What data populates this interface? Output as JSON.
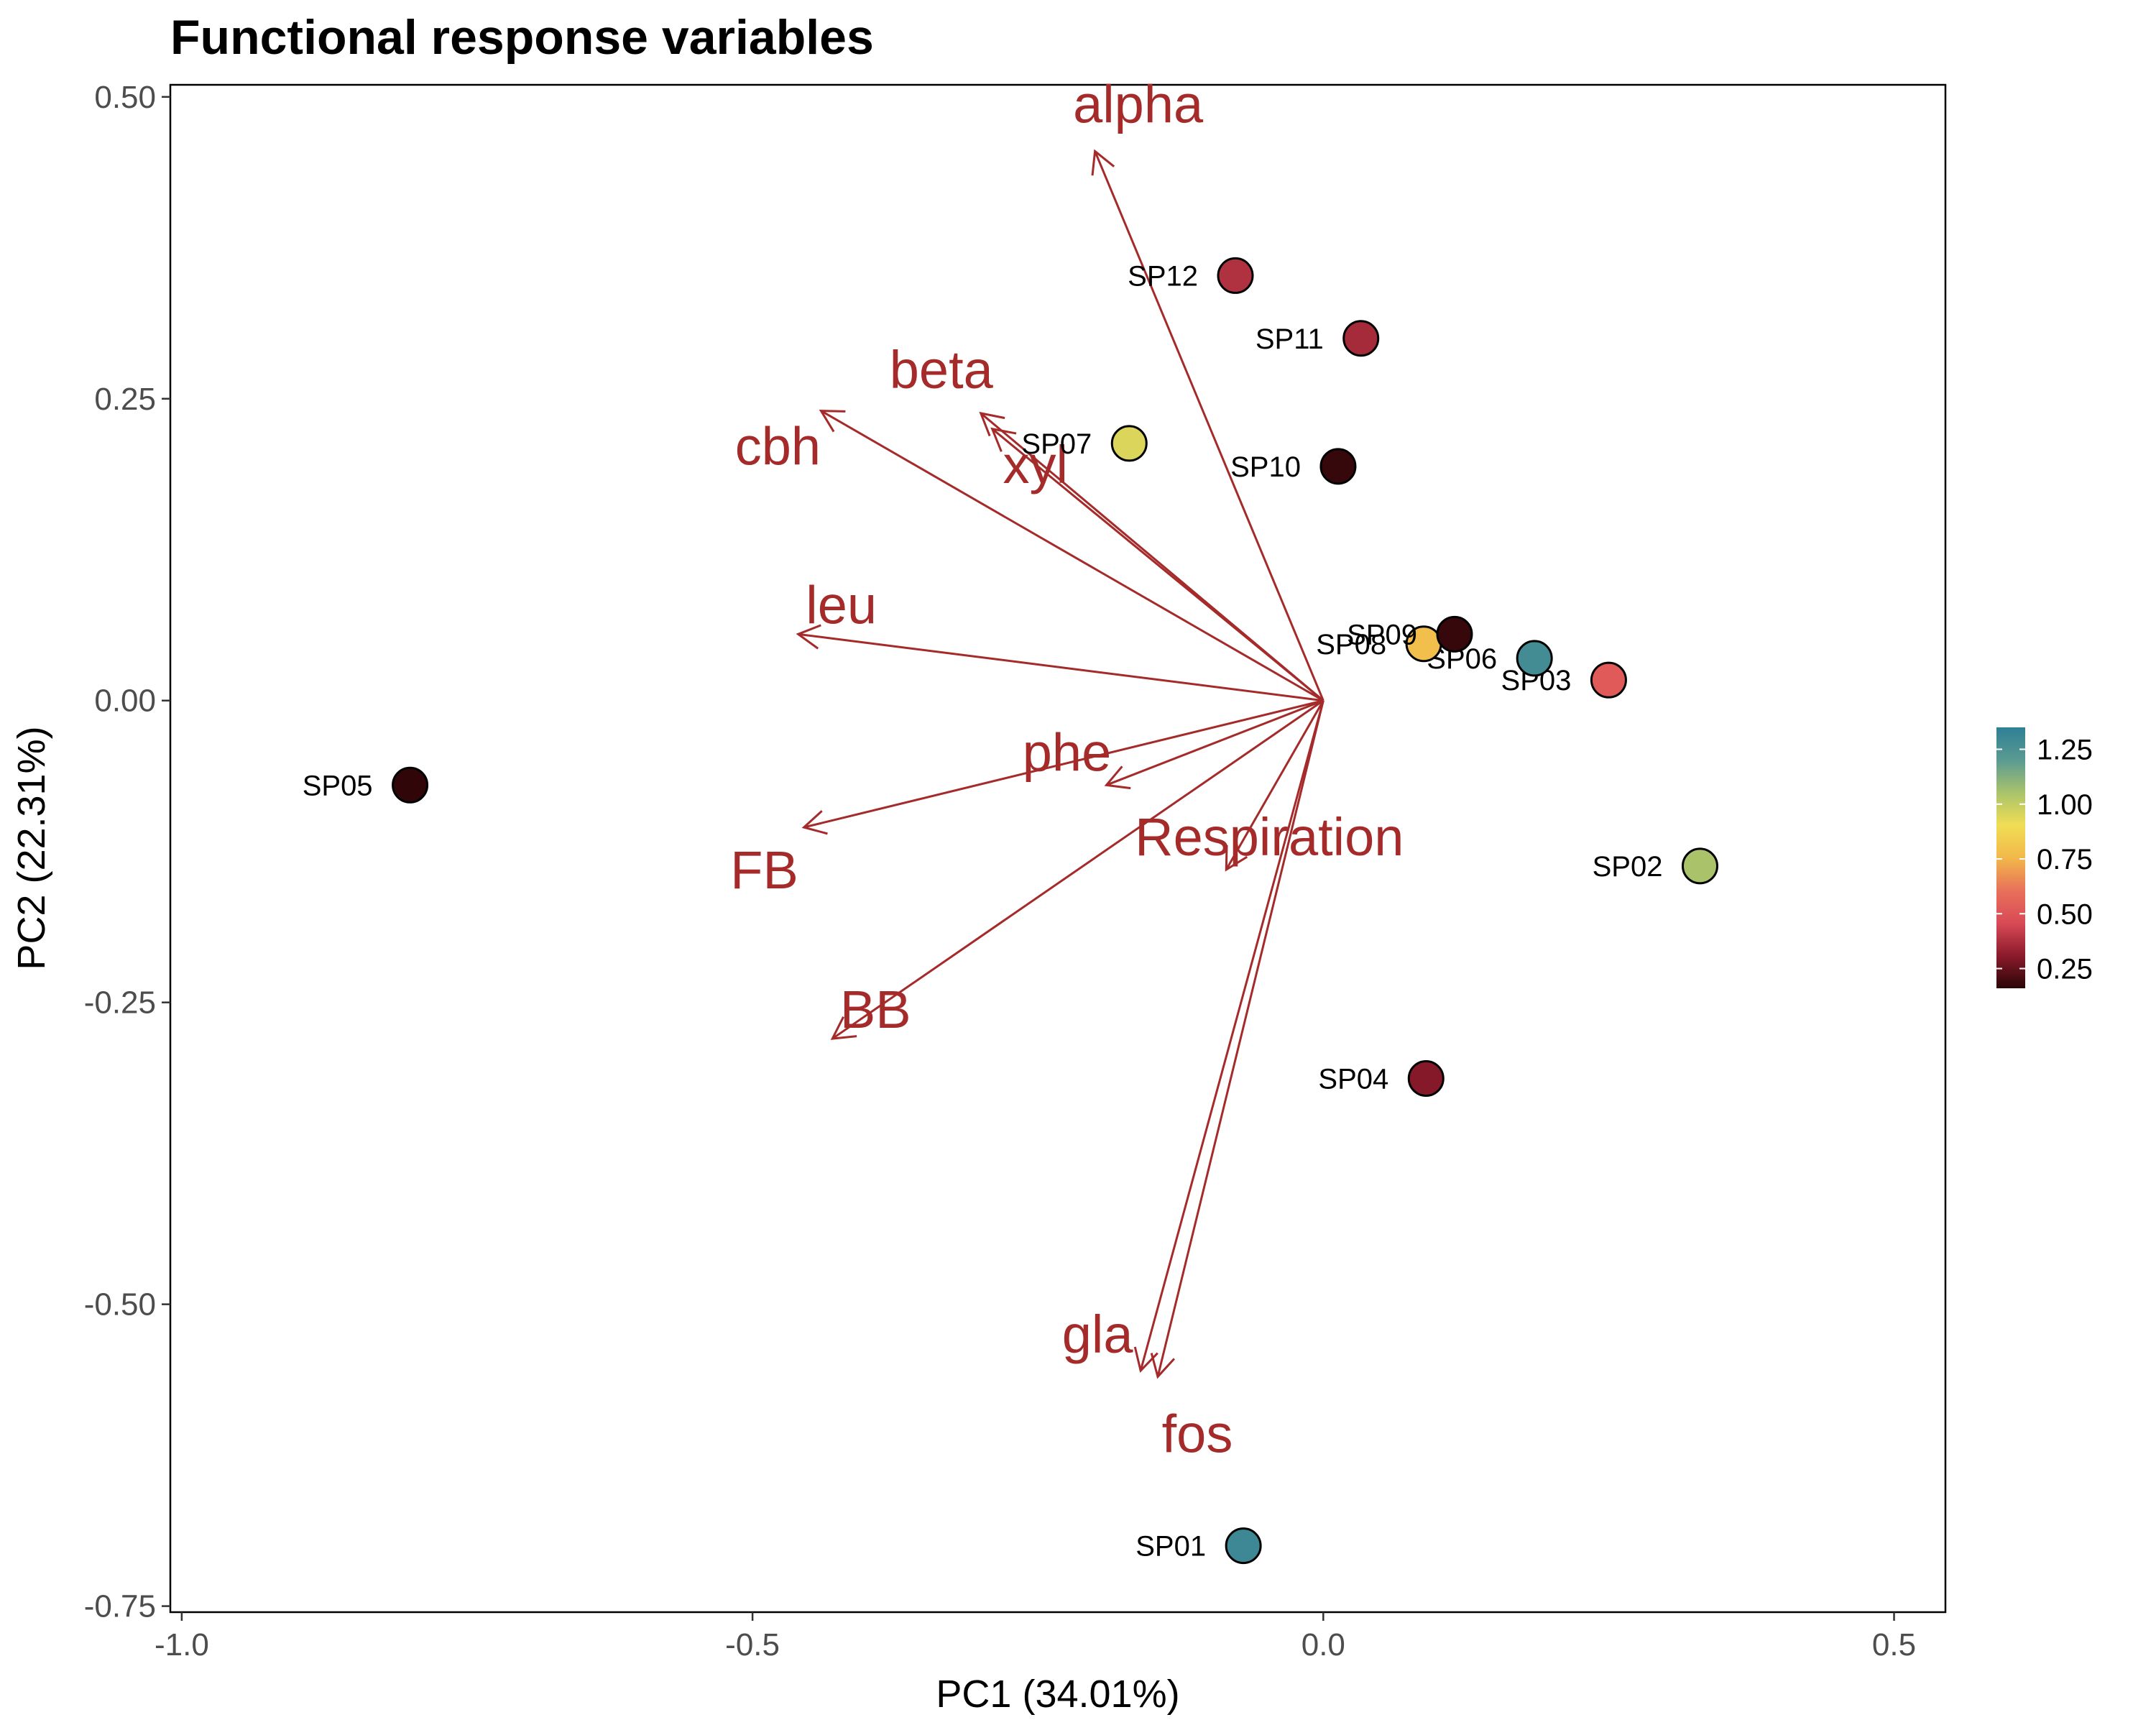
{
  "chart_data": {
    "type": "scatter",
    "title": "Functional response variables",
    "xlabel": "PC1 (34.01%)",
    "ylabel": "PC2 (22.31%)",
    "xlim": [
      -1.01,
      0.545
    ],
    "ylim": [
      -0.755,
      0.51
    ],
    "x_ticks": [
      -1.0,
      -0.5,
      0.0,
      0.5
    ],
    "x_tick_labels": [
      "-1.0",
      "-0.5",
      "0.0",
      "0.5"
    ],
    "y_ticks": [
      0.5,
      0.25,
      0.0,
      -0.25,
      -0.5,
      -0.75
    ],
    "y_tick_labels": [
      "0.50",
      "0.25",
      "0.00",
      "-0.25",
      "-0.50",
      "-0.75"
    ],
    "grid": false,
    "legend_position": "right",
    "colorbar": {
      "range": [
        0.16,
        1.35
      ],
      "ticks": [
        1.25,
        1.0,
        0.75,
        0.5,
        0.25
      ],
      "tick_labels": [
        "1.25",
        "1.00",
        "0.75",
        "0.50",
        "0.25"
      ],
      "colors": [
        "#2a0506",
        "#8b1a2c",
        "#d94a56",
        "#e8715a",
        "#f2b84a",
        "#f1dd55",
        "#a9c36b",
        "#5a9a92",
        "#2f7f95"
      ]
    },
    "arrow_color": "#a52a2a",
    "points": [
      {
        "label": "SP01",
        "x": -0.07,
        "y": -0.7,
        "value": 1.3
      },
      {
        "label": "SP02",
        "x": 0.33,
        "y": -0.137,
        "value": 1.05
      },
      {
        "label": "SP03",
        "x": 0.25,
        "y": 0.017,
        "value": 0.52
      },
      {
        "label": "SP04",
        "x": 0.09,
        "y": -0.313,
        "value": 0.3
      },
      {
        "label": "SP05",
        "x": -0.8,
        "y": -0.07,
        "value": 0.17
      },
      {
        "label": "SP06",
        "x": 0.185,
        "y": 0.035,
        "value": 1.28
      },
      {
        "label": "SP07",
        "x": -0.17,
        "y": 0.213,
        "value": 0.95
      },
      {
        "label": "SP08",
        "x": 0.088,
        "y": 0.047,
        "value": 0.78
      },
      {
        "label": "SP09",
        "x": 0.115,
        "y": 0.055,
        "value": 0.18
      },
      {
        "label": "SP10",
        "x": 0.013,
        "y": 0.194,
        "value": 0.18
      },
      {
        "label": "SP11",
        "x": 0.033,
        "y": 0.3,
        "value": 0.36
      },
      {
        "label": "SP12",
        "x": -0.077,
        "y": 0.352,
        "value": 0.38
      }
    ],
    "vectors": [
      {
        "label": "alpha",
        "x": -0.2,
        "y": 0.455
      },
      {
        "label": "beta",
        "x": -0.3,
        "y": 0.238
      },
      {
        "label": "xyl",
        "x": -0.29,
        "y": 0.225
      },
      {
        "label": "cbh",
        "x": -0.44,
        "y": 0.24
      },
      {
        "label": "leu",
        "x": -0.46,
        "y": 0.055
      },
      {
        "label": "phe",
        "x": -0.19,
        "y": -0.07
      },
      {
        "label": "FB",
        "x": -0.455,
        "y": -0.105
      },
      {
        "label": "Respiration",
        "x": -0.085,
        "y": -0.14
      },
      {
        "label": "BB",
        "x": -0.43,
        "y": -0.28
      },
      {
        "label": "gla",
        "x": -0.16,
        "y": -0.555
      },
      {
        "label": "fos",
        "x": -0.145,
        "y": -0.56
      }
    ]
  }
}
